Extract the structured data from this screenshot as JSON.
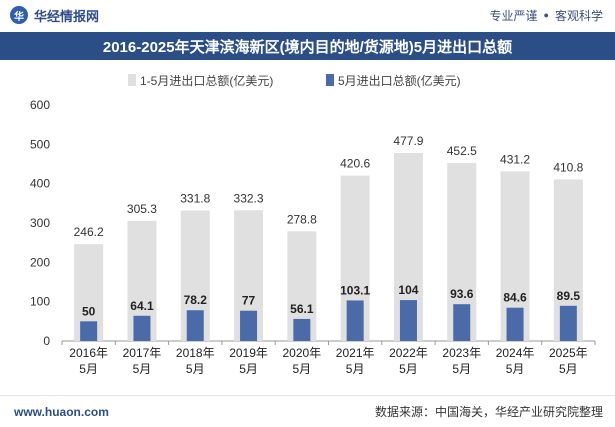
{
  "header": {
    "brand_logo_text": "华",
    "brand": "华经情报网",
    "tag1": "专业严谨",
    "tag2": "客观科学"
  },
  "title": "2016-2025年天津滨海新区(境内目的地/货源地)5月进出口总额",
  "footer": {
    "url": "www.huaon.com",
    "source": "数据来源：中国海关，华经产业研究院整理"
  },
  "colors": {
    "series1": "#e0e0e0",
    "series2": "#4a6aa8",
    "title_bg": "#2b4e86"
  },
  "chart_data": {
    "type": "bar",
    "categories": [
      "2016年\n5月",
      "2017年\n5月",
      "2018年\n5月",
      "2019年\n5月",
      "2020年\n5月",
      "2021年\n5月",
      "2022年\n5月",
      "2023年\n5月",
      "2024年\n5月",
      "2025年\n5月"
    ],
    "series": [
      {
        "name": "1-5月进出口总额(亿美元)",
        "values": [
          246.2,
          305.3,
          331.8,
          332.3,
          278.8,
          420.6,
          477.9,
          452.5,
          431.2,
          410.8
        ]
      },
      {
        "name": "5月进出口总额(亿美元)",
        "values": [
          50,
          64.1,
          78.2,
          77,
          56.1,
          103.1,
          104,
          93.6,
          84.6,
          89.5
        ]
      }
    ],
    "ylim": [
      0,
      600
    ],
    "yticks": [
      0,
      100,
      200,
      300,
      400,
      500,
      600
    ],
    "legend": "top",
    "grid": false
  }
}
